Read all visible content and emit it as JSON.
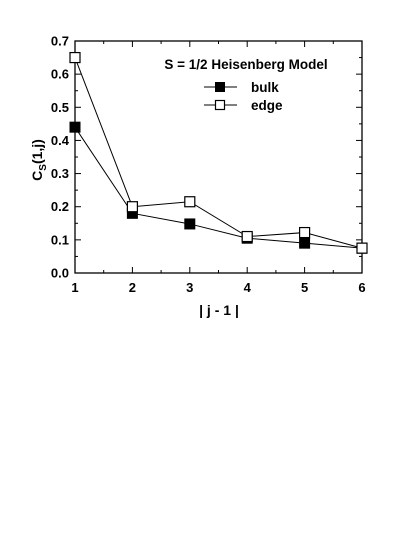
{
  "chart_data": {
    "type": "line",
    "title": "S = 1/2 Heisenberg Model",
    "xlabel": "| j - 1 |",
    "ylabel_main": "C",
    "ylabel_sub": "S",
    "ylabel_tail": "(1,j)",
    "xlim": [
      1,
      6
    ],
    "ylim": [
      0,
      0.7
    ],
    "xticks": [
      "1",
      "2",
      "3",
      "4",
      "5",
      "6"
    ],
    "yticks": [
      "0.0",
      "0.1",
      "0.2",
      "0.3",
      "0.4",
      "0.5",
      "0.6",
      "0.7"
    ],
    "grid": false,
    "legend_position": "top-right",
    "x": [
      1,
      2,
      3,
      4,
      5,
      6
    ],
    "series": [
      {
        "name": "bulk",
        "marker": "filled-square",
        "values": [
          0.44,
          0.18,
          0.148,
          0.105,
          0.09,
          0.075
        ]
      },
      {
        "name": "edge",
        "marker": "open-square",
        "values": [
          0.65,
          0.2,
          0.215,
          0.11,
          0.122,
          0.075
        ]
      }
    ],
    "colors": {
      "line": "#000000",
      "marker_fill_bulk": "#000000",
      "marker_fill_edge": "#ffffff"
    }
  }
}
